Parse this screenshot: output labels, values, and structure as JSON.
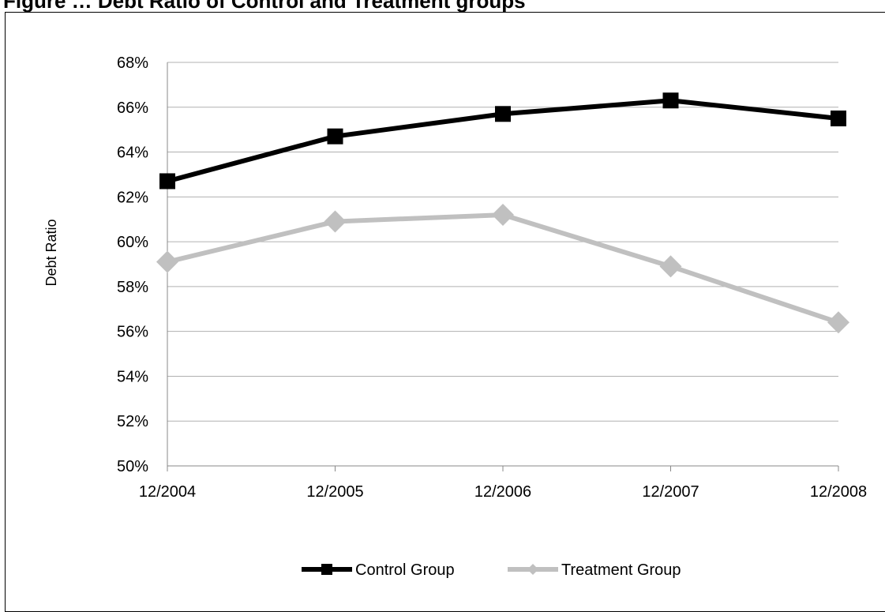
{
  "title": "Figure … Debt Ratio of Control and Treatment groups",
  "chart_data": {
    "type": "line",
    "x": [
      "12/2004",
      "12/2005",
      "12/2006",
      "12/2007",
      "12/2008"
    ],
    "ylabel": "Debt Ratio",
    "xlabel": "",
    "ylim": [
      50,
      68
    ],
    "yticks": [
      "50%",
      "52%",
      "54%",
      "56%",
      "58%",
      "60%",
      "62%",
      "64%",
      "66%",
      "68%"
    ],
    "grid": "horizontal",
    "legend": "bottom",
    "series": [
      {
        "name": "Control Group",
        "values": [
          62.7,
          64.7,
          65.7,
          66.3,
          65.5
        ],
        "color": "#000000",
        "marker": "square"
      },
      {
        "name": "Treatment Group",
        "values": [
          59.1,
          60.9,
          61.2,
          58.9,
          56.4
        ],
        "color": "#c0c0c0",
        "marker": "diamond"
      }
    ]
  }
}
